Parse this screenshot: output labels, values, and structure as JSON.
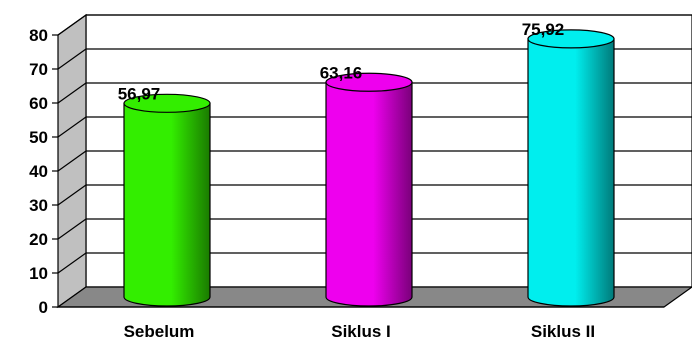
{
  "chart_data": {
    "type": "bar",
    "style": "3d-cylinder",
    "categories": [
      "Sebelum",
      "Siklus I",
      "Siklus II"
    ],
    "values": [
      56.97,
      63.16,
      75.92
    ],
    "value_labels": [
      "56,97",
      "63,16",
      "75,92"
    ],
    "yticks": [
      "0",
      "10",
      "20",
      "30",
      "40",
      "50",
      "60",
      "70",
      "80"
    ],
    "ylim": [
      0,
      80
    ],
    "grid": true,
    "legend": "none",
    "colors": [
      "#33ee00",
      "#ee00ee",
      "#00eeee"
    ],
    "dark_colors": [
      "#1a7a00",
      "#7a007a",
      "#007a7a"
    ]
  }
}
